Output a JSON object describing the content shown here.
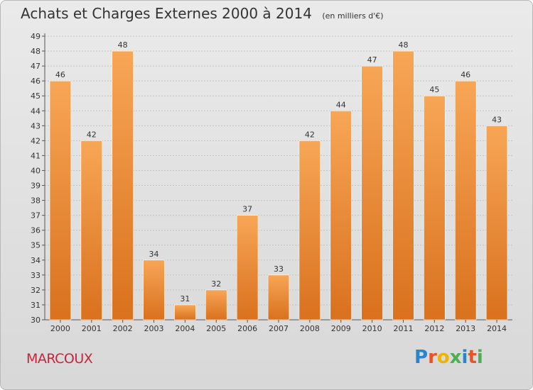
{
  "header": {
    "title": "Achats et Charges Externes 2000 à 2014",
    "unit": "(en milliers d'€)"
  },
  "footer": {
    "city": "MARCOUX",
    "brand": "Proxiti",
    "brand_colors": [
      "#2a86cc",
      "#e8532a",
      "#f0b400",
      "#4caf50",
      "#2a86cc",
      "#e8532a",
      "#4caf50"
    ]
  },
  "colors": {
    "bar_light": "#f7a656",
    "bar_dark": "#d9711e",
    "city": "#c8253a"
  },
  "chart_data": {
    "type": "bar",
    "title": "Achats et Charges Externes 2000 à 2014",
    "subtitle": "(en milliers d'€)",
    "categories": [
      "2000",
      "2001",
      "2002",
      "2003",
      "2004",
      "2005",
      "2006",
      "2007",
      "2008",
      "2009",
      "2010",
      "2011",
      "2012",
      "2013",
      "2014"
    ],
    "values": [
      46,
      42,
      48,
      34,
      31,
      32,
      37,
      33,
      42,
      44,
      47,
      48,
      45,
      46,
      43
    ],
    "ylim": [
      30,
      49
    ],
    "yticks": [
      30,
      31,
      32,
      33,
      34,
      35,
      36,
      37,
      38,
      39,
      40,
      41,
      42,
      43,
      44,
      45,
      46,
      47,
      48,
      49
    ],
    "grid": true,
    "data_labels": true
  }
}
